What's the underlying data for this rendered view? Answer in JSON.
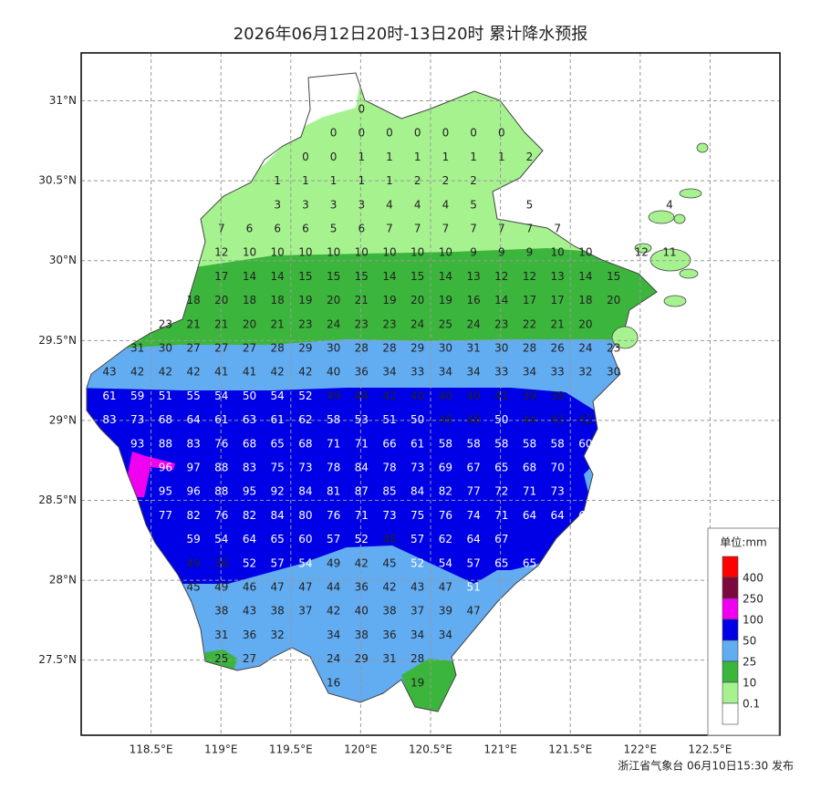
{
  "header": {
    "title": "2026年06月12日20时-13日20时 累计降水预报"
  },
  "footer": "浙江省气象台 06月10日15:30 发布",
  "axes": {
    "xlim": [
      118.0,
      123.0
    ],
    "ylim": [
      27.03,
      31.3
    ],
    "xticks": [
      {
        "value": 118.5,
        "label": "118.5°E"
      },
      {
        "value": 119,
        "label": "119°E"
      },
      {
        "value": 119.5,
        "label": "119.5°E"
      },
      {
        "value": 120,
        "label": "120°E"
      },
      {
        "value": 120.5,
        "label": "120.5°E"
      },
      {
        "value": 121,
        "label": "121°E"
      },
      {
        "value": 121.5,
        "label": "121.5°E"
      },
      {
        "value": 122,
        "label": "122°E"
      },
      {
        "value": 122.5,
        "label": "122.5°E"
      }
    ],
    "yticks": [
      {
        "value": 31,
        "label": "31°N"
      },
      {
        "value": 30.5,
        "label": "30.5°N"
      },
      {
        "value": 30,
        "label": "30°N"
      },
      {
        "value": 29.5,
        "label": "29.5°N"
      },
      {
        "value": 29,
        "label": "29°N"
      },
      {
        "value": 28.5,
        "label": "28.5°N"
      },
      {
        "value": 28,
        "label": "28°N"
      },
      {
        "value": 27.5,
        "label": "27.5°N"
      }
    ],
    "grid": true
  },
  "legend": {
    "title": "单位:mm",
    "levels": [
      400,
      250,
      100,
      50,
      25,
      10,
      0.1
    ],
    "colors": [
      "#ff0000",
      "#7a0a3c",
      "#f000f0",
      "#0000e6",
      "#62acf2",
      "#3cb53c",
      "#a6f28f",
      "#ffffff"
    ]
  },
  "grid": {
    "rows": [
      [
        null,
        null,
        null,
        null,
        null,
        null,
        null,
        null,
        null,
        0,
        null,
        null,
        null,
        null,
        null,
        null,
        null,
        null,
        null,
        null,
        null
      ],
      [
        null,
        null,
        null,
        null,
        null,
        null,
        null,
        null,
        0,
        0,
        0,
        0,
        0,
        0,
        0,
        null,
        null,
        null,
        null,
        null,
        null
      ],
      [
        null,
        null,
        null,
        null,
        null,
        null,
        null,
        0,
        0,
        1,
        1,
        1,
        1,
        1,
        1,
        2,
        null,
        null,
        null,
        null,
        null
      ],
      [
        null,
        null,
        null,
        null,
        null,
        null,
        1,
        1,
        1,
        1,
        1,
        2,
        2,
        2,
        null,
        null,
        null,
        null,
        null,
        null,
        null
      ],
      [
        null,
        null,
        null,
        null,
        null,
        null,
        3,
        3,
        3,
        3,
        4,
        4,
        4,
        5,
        null,
        5,
        null,
        null,
        null,
        null,
        4
      ],
      [
        null,
        null,
        null,
        null,
        7,
        6,
        6,
        6,
        5,
        6,
        7,
        7,
        7,
        7,
        7,
        7,
        7,
        null,
        null,
        null,
        null
      ],
      [
        null,
        null,
        null,
        null,
        12,
        10,
        10,
        10,
        10,
        10,
        10,
        10,
        10,
        9,
        9,
        9,
        10,
        10,
        null,
        12,
        11
      ],
      [
        null,
        null,
        null,
        null,
        17,
        14,
        14,
        15,
        15,
        15,
        14,
        15,
        14,
        13,
        12,
        12,
        13,
        14,
        15,
        null,
        null
      ],
      [
        null,
        null,
        null,
        18,
        20,
        18,
        18,
        19,
        20,
        21,
        19,
        20,
        19,
        16,
        14,
        17,
        17,
        18,
        20,
        null,
        null
      ],
      [
        null,
        null,
        23,
        21,
        21,
        20,
        21,
        23,
        24,
        23,
        23,
        24,
        25,
        24,
        23,
        22,
        21,
        20,
        null,
        null,
        null
      ],
      [
        null,
        31,
        30,
        27,
        27,
        27,
        28,
        29,
        30,
        28,
        28,
        29,
        30,
        31,
        30,
        28,
        26,
        24,
        23,
        null,
        null
      ],
      [
        43,
        42,
        42,
        42,
        41,
        41,
        42,
        42,
        40,
        36,
        34,
        33,
        34,
        34,
        33,
        34,
        33,
        32,
        30,
        null,
        null
      ],
      [
        61,
        59,
        51,
        55,
        54,
        50,
        54,
        52,
        49,
        44,
        42,
        40,
        40,
        40,
        41,
        39,
        38,
        null,
        null,
        null,
        null
      ],
      [
        83,
        73,
        68,
        64,
        61,
        63,
        61,
        62,
        58,
        53,
        51,
        50,
        48,
        48,
        50,
        44,
        42,
        42,
        null,
        null,
        null
      ],
      [
        null,
        93,
        88,
        83,
        76,
        68,
        65,
        68,
        71,
        71,
        66,
        61,
        58,
        58,
        58,
        58,
        58,
        60,
        null,
        null,
        null
      ],
      [
        null,
        null,
        96,
        97,
        88,
        83,
        75,
        73,
        78,
        84,
        78,
        73,
        69,
        67,
        65,
        68,
        70,
        null,
        null,
        null,
        null
      ],
      [
        null,
        null,
        95,
        96,
        88,
        95,
        92,
        84,
        81,
        87,
        85,
        84,
        82,
        77,
        72,
        71,
        73,
        null,
        null,
        null,
        null
      ],
      [
        null,
        null,
        77,
        82,
        76,
        82,
        84,
        80,
        76,
        71,
        73,
        75,
        76,
        74,
        71,
        64,
        64,
        67,
        null,
        null,
        null
      ],
      [
        null,
        null,
        null,
        59,
        54,
        64,
        65,
        60,
        57,
        52,
        46,
        57,
        62,
        64,
        67,
        null,
        null,
        null,
        null,
        null,
        null
      ],
      [
        null,
        null,
        null,
        49,
        36,
        52,
        57,
        54,
        49,
        42,
        45,
        52,
        54,
        57,
        65,
        65,
        null,
        null,
        null,
        null,
        null
      ],
      [
        null,
        null,
        null,
        45,
        49,
        46,
        47,
        47,
        44,
        36,
        42,
        43,
        47,
        51,
        null,
        null,
        null,
        null,
        null,
        null,
        null
      ],
      [
        null,
        null,
        null,
        null,
        38,
        43,
        38,
        37,
        42,
        40,
        38,
        37,
        39,
        47,
        null,
        null,
        null,
        null,
        null,
        null,
        null
      ],
      [
        null,
        null,
        null,
        null,
        31,
        36,
        32,
        null,
        34,
        38,
        36,
        34,
        34,
        null,
        null,
        null,
        null,
        null,
        null,
        null,
        null
      ],
      [
        null,
        null,
        null,
        null,
        25,
        27,
        null,
        null,
        24,
        29,
        31,
        28,
        null,
        null,
        null,
        null,
        null,
        null,
        null,
        null,
        null
      ],
      [
        null,
        null,
        null,
        null,
        null,
        null,
        null,
        null,
        16,
        null,
        null,
        19,
        null,
        null,
        null,
        null,
        null,
        null,
        null,
        null,
        null
      ]
    ]
  }
}
